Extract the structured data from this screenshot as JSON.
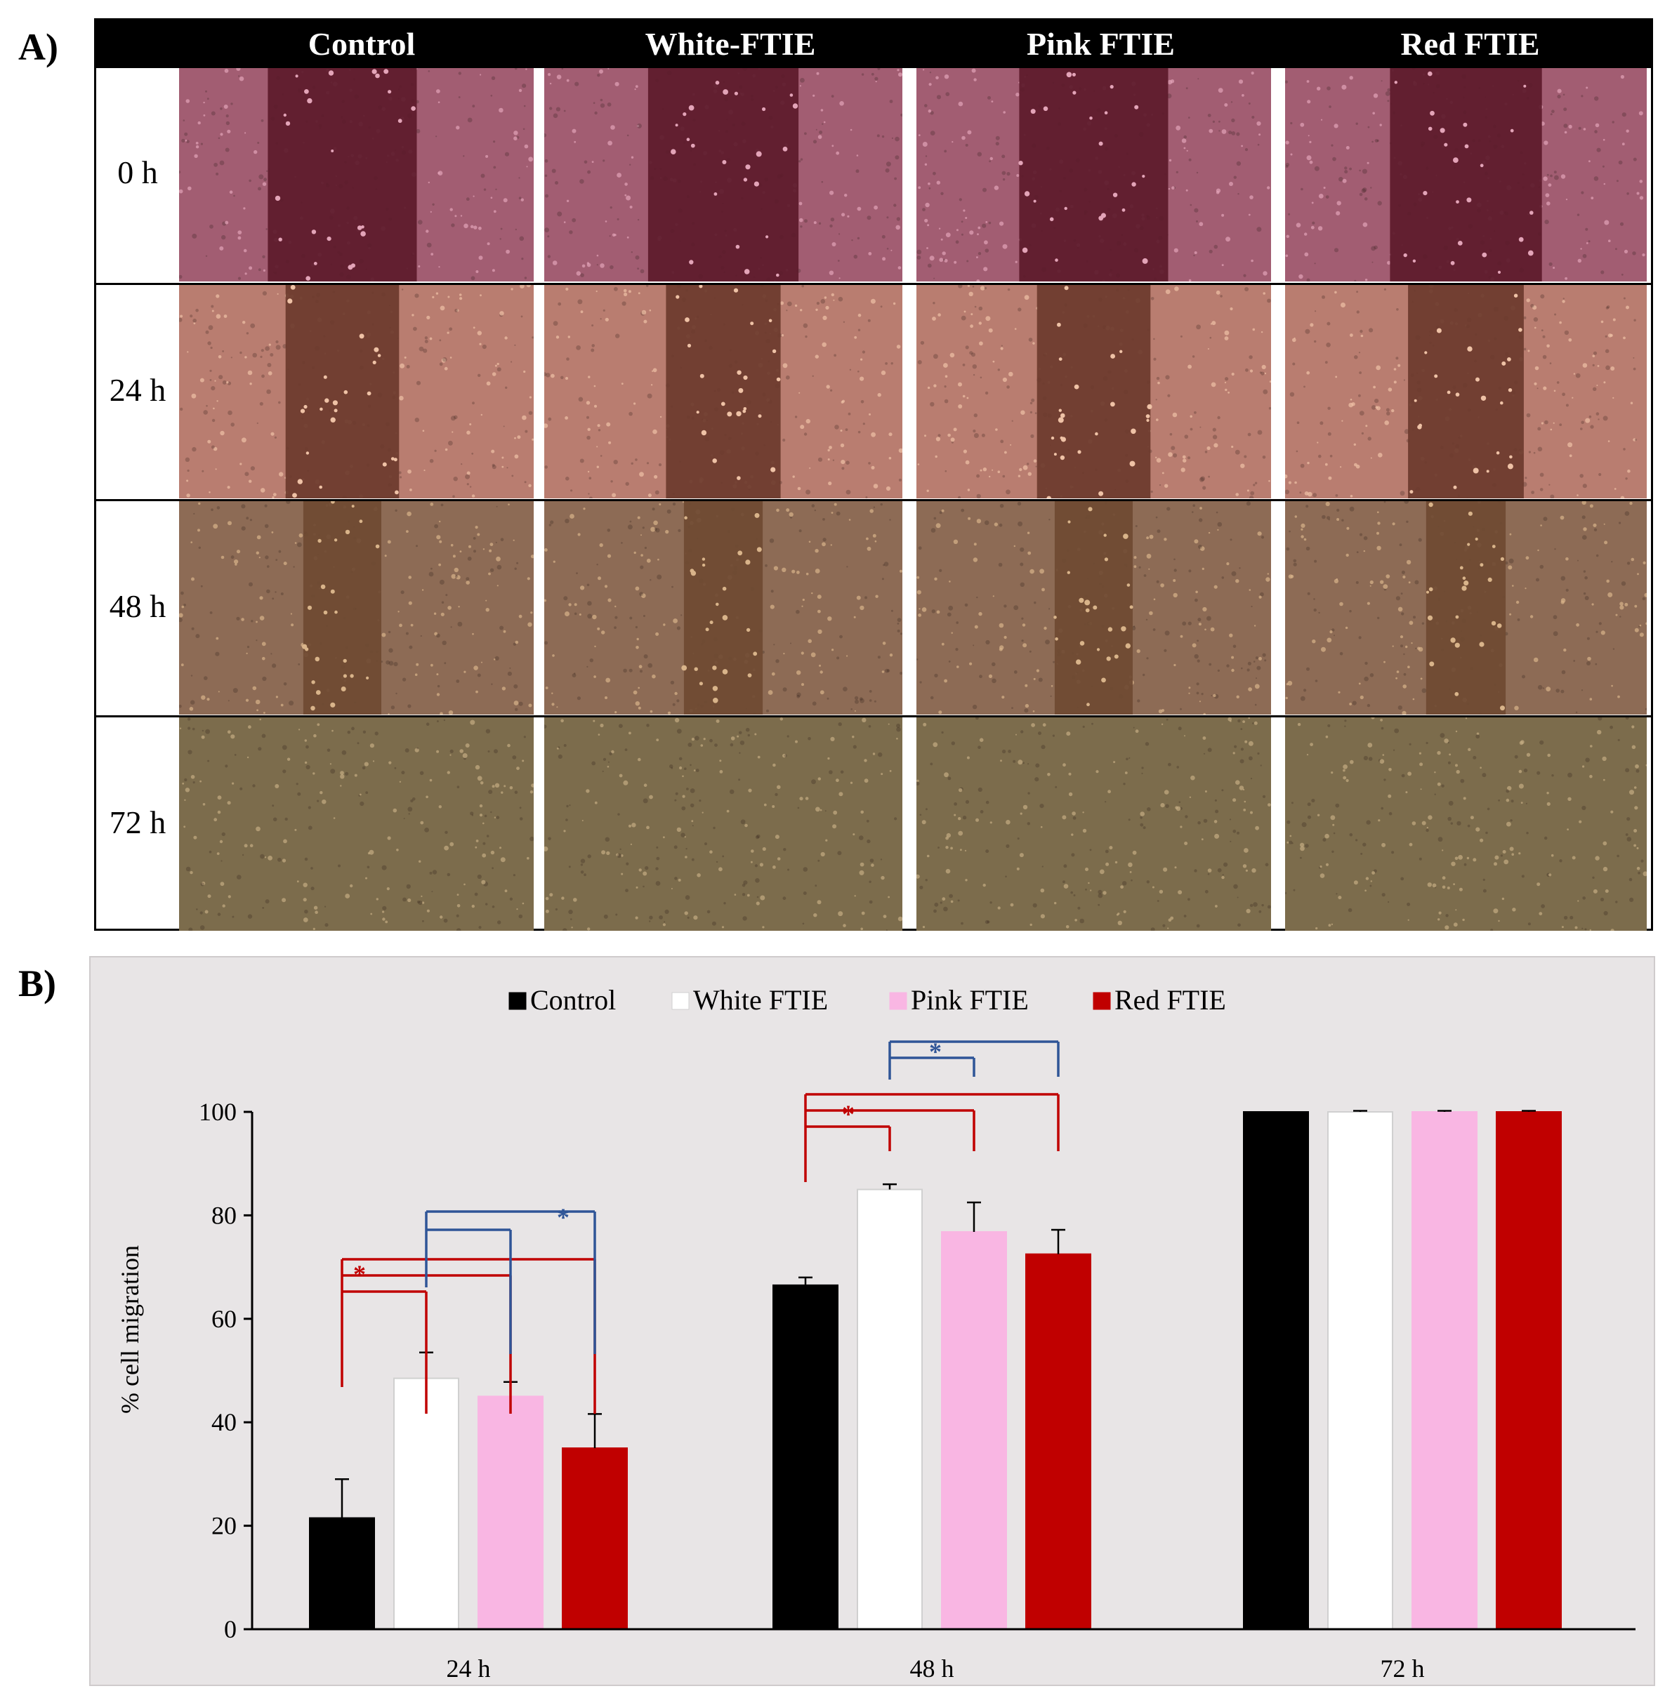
{
  "panel_a": {
    "label": "A)",
    "columns": [
      "Control",
      "White-FTIE",
      "Pink FTIE",
      "Red FTIE"
    ],
    "rows": [
      "0 h",
      "24 h",
      "48 h",
      "72 h"
    ]
  },
  "panel_b": {
    "label": "B)"
  },
  "colors": {
    "control": "#000000",
    "white": "#ffffff",
    "pink": "#f9b6e3",
    "red": "#c00000",
    "sig_red": "#c00000",
    "sig_blue": "#2f5597",
    "plot_bg": "#e8e5e6"
  },
  "chart_data": {
    "type": "bar",
    "title": "",
    "xlabel": "",
    "ylabel": "% cell migration",
    "categories": [
      "24 h",
      "48 h",
      "72 h"
    ],
    "ylim": [
      0,
      100
    ],
    "yticks": [
      0,
      20,
      40,
      60,
      80,
      100
    ],
    "legend_position": "top-center",
    "series": [
      {
        "name": "Control",
        "color": "#000000",
        "values": [
          21.5,
          66.5,
          100
        ],
        "errors": [
          7.5,
          1.5,
          0
        ]
      },
      {
        "name": "White FTIE",
        "color": "#ffffff",
        "values": [
          48.5,
          85.0,
          100
        ],
        "errors": [
          5.0,
          1.0,
          0.2
        ]
      },
      {
        "name": "Pink FTIE",
        "color": "#f9b6e3",
        "values": [
          45.0,
          76.8,
          100
        ],
        "errors": [
          2.8,
          5.7,
          0.2
        ]
      },
      {
        "name": "Red FTIE",
        "color": "#c00000",
        "values": [
          35.0,
          72.5,
          100
        ],
        "errors": [
          6.6,
          4.7,
          0.2
        ]
      }
    ],
    "annotations": [
      {
        "category": "24 h",
        "color": "red",
        "text": "*",
        "from": "Control",
        "to": [
          "White FTIE",
          "Pink FTIE",
          "Red FTIE"
        ]
      },
      {
        "category": "24 h",
        "color": "blue",
        "text": "*",
        "from": "White FTIE",
        "to": [
          "Pink FTIE",
          "Red FTIE"
        ]
      },
      {
        "category": "48 h",
        "color": "red",
        "text": "*",
        "from": "Control",
        "to": [
          "White FTIE",
          "Pink FTIE",
          "Red FTIE"
        ]
      },
      {
        "category": "48 h",
        "color": "blue",
        "text": "*",
        "from": "White FTIE",
        "to": [
          "Pink FTIE",
          "Red FTIE"
        ]
      }
    ]
  }
}
